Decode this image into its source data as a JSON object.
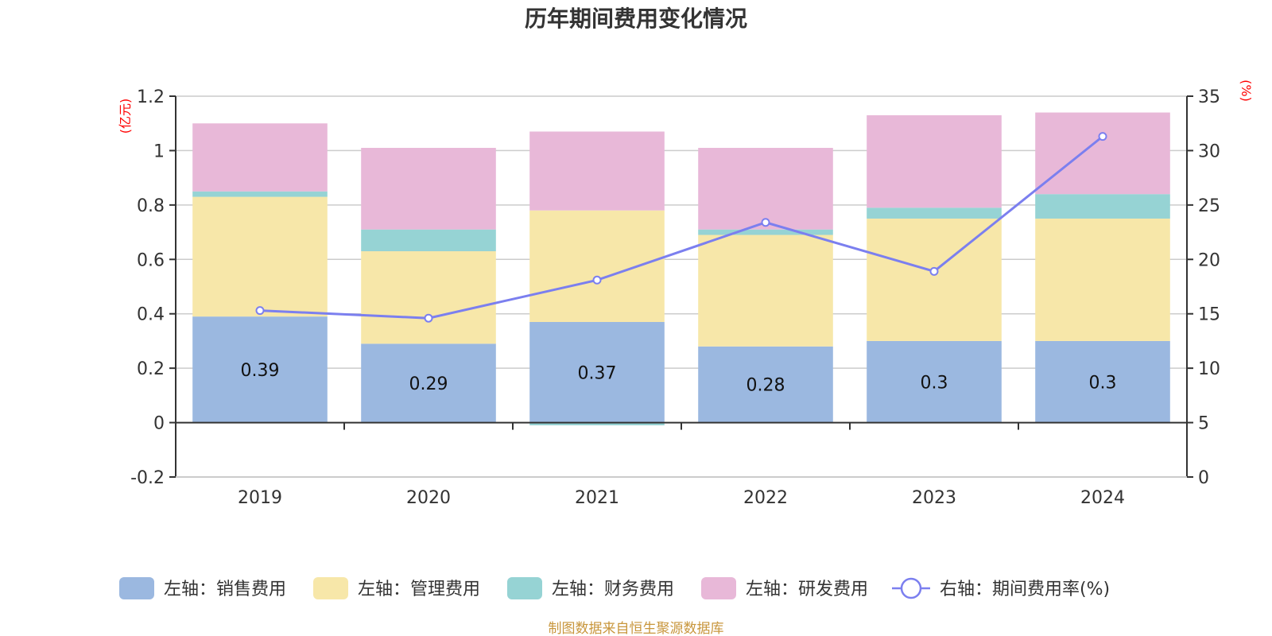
{
  "chart_data": {
    "type": "bar",
    "stacked": true,
    "title": "历年期间费用变化情况",
    "categories": [
      "2019",
      "2020",
      "2021",
      "2022",
      "2023",
      "2024"
    ],
    "left_axis": {
      "unit_label": "(亿元)",
      "ylim": [
        -0.2,
        1.2
      ],
      "ticks": [
        -0.2,
        0,
        0.2,
        0.4,
        0.6,
        0.8,
        1,
        1.2
      ],
      "tick_labels": [
        "-0.2",
        "0",
        "0.2",
        "0.4",
        "0.6",
        "0.8",
        "1",
        "1.2"
      ]
    },
    "right_axis": {
      "unit_label": "(%)",
      "ylim": [
        0,
        35
      ],
      "ticks": [
        0,
        5,
        10,
        15,
        20,
        25,
        30,
        35
      ],
      "tick_labels": [
        "0",
        "5",
        "10",
        "15",
        "20",
        "25",
        "30",
        "35"
      ]
    },
    "series": [
      {
        "name": "左轴：销售费用",
        "axis": "left",
        "kind": "bar",
        "color": "#9bb8e0",
        "values": [
          0.39,
          0.29,
          0.37,
          0.28,
          0.3,
          0.3
        ],
        "data_labels": [
          "0.39",
          "0.29",
          "0.37",
          "0.28",
          "0.3",
          "0.3"
        ]
      },
      {
        "name": "左轴：管理费用",
        "axis": "left",
        "kind": "bar",
        "color": "#f7e7a9",
        "values": [
          0.44,
          0.34,
          0.41,
          0.41,
          0.45,
          0.45
        ]
      },
      {
        "name": "左轴：财务费用",
        "axis": "left",
        "kind": "bar",
        "color": "#96d3d4",
        "values": [
          0.02,
          0.08,
          -0.01,
          0.02,
          0.04,
          0.09
        ]
      },
      {
        "name": "左轴：研发费用",
        "axis": "left",
        "kind": "bar",
        "color": "#e8b8d8",
        "values": [
          0.25,
          0.3,
          0.29,
          0.3,
          0.34,
          0.3
        ]
      },
      {
        "name": "右轴：期间费用率(%)",
        "axis": "right",
        "kind": "line",
        "color": "#7b7fef",
        "values": [
          15.3,
          14.6,
          18.1,
          23.4,
          18.9,
          31.3
        ]
      }
    ],
    "grid": true,
    "legend_position": "bottom",
    "source_note": "制图数据来自恒生聚源数据库"
  }
}
